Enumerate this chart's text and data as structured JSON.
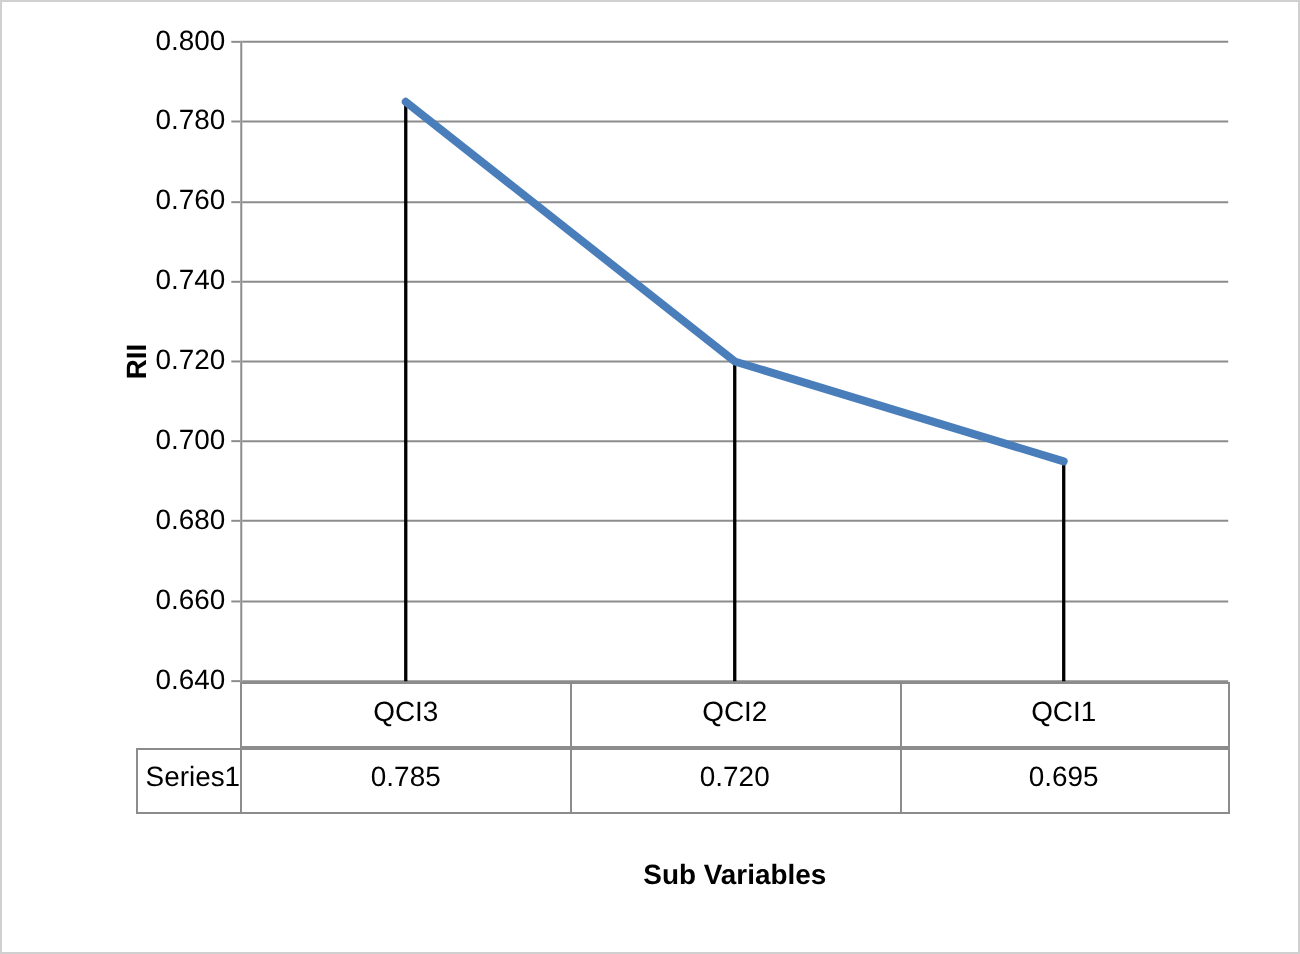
{
  "chart_data": {
    "type": "line",
    "ylabel": "RII",
    "xlabel": "Sub Variables",
    "categories": [
      "QCI3",
      "QCI2",
      "QCI1"
    ],
    "series": [
      {
        "name": "Series1",
        "color": "#4a7ebb",
        "values": [
          0.785,
          0.72,
          0.695
        ],
        "value_labels": [
          "0.785",
          "0.720",
          "0.695"
        ]
      },
      {
        "type": "bar",
        "color": "#000000",
        "values": [
          0.785,
          0.72,
          0.695
        ]
      }
    ],
    "ylim": [
      0.64,
      0.8
    ],
    "yticks": [
      {
        "value": 0.64,
        "label": "0.640"
      },
      {
        "value": 0.66,
        "label": "0.660"
      },
      {
        "value": 0.68,
        "label": "0.680"
      },
      {
        "value": 0.7,
        "label": "0.700"
      },
      {
        "value": 0.72,
        "label": "0.720"
      },
      {
        "value": 0.74,
        "label": "0.740"
      },
      {
        "value": 0.76,
        "label": "0.760"
      },
      {
        "value": 0.78,
        "label": "0.780"
      },
      {
        "value": 0.8,
        "label": "0.800"
      }
    ],
    "grid": "y",
    "legend": false,
    "marker": "none",
    "line_style": "solid"
  }
}
